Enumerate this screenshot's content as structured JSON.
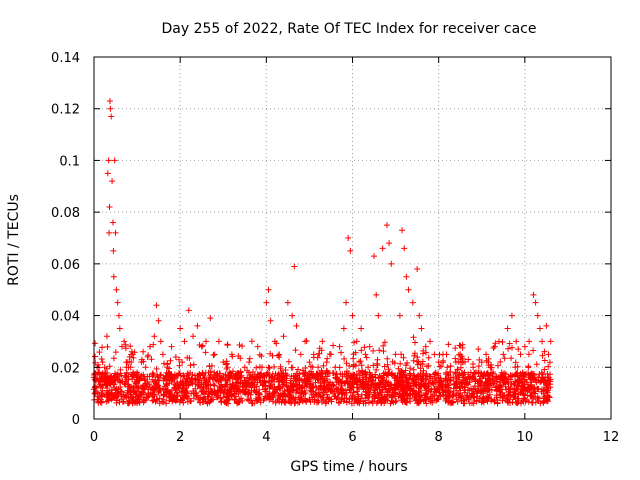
{
  "chart_data": {
    "type": "scatter",
    "title": "Day 255 of 2022, Rate Of TEC Index for receiver cace",
    "xlabel": "GPS time / hours",
    "ylabel": "ROTI / TECUs",
    "xlim": [
      0,
      12
    ],
    "ylim": [
      0,
      0.14
    ],
    "xticks": [
      "0",
      "2",
      "4",
      "6",
      "8",
      "10",
      "12"
    ],
    "yticks": [
      "0",
      "0.02",
      "0.04",
      "0.06",
      "0.08",
      "0.1",
      "0.12",
      "0.14"
    ],
    "grid": true,
    "marker": "+",
    "series_color": "#ff0000",
    "series": [
      {
        "name": "ROTI",
        "x": [
          0.05,
          0.1,
          0.15,
          0.2,
          0.25,
          0.3,
          0.32,
          0.34,
          0.35,
          0.36,
          0.37,
          0.38,
          0.4,
          0.42,
          0.44,
          0.45,
          0.46,
          0.48,
          0.5,
          0.52,
          0.55,
          0.58,
          0.6,
          0.65,
          0.7,
          0.75,
          0.8,
          0.9,
          1.0,
          1.1,
          1.2,
          1.3,
          1.4,
          1.45,
          1.5,
          1.55,
          1.6,
          1.7,
          1.8,
          1.9,
          2.0,
          2.1,
          2.2,
          2.3,
          2.4,
          2.5,
          2.6,
          2.7,
          2.8,
          2.9,
          3.0,
          3.1,
          3.2,
          3.4,
          3.5,
          3.6,
          3.8,
          3.9,
          4.0,
          4.05,
          4.1,
          4.2,
          4.3,
          4.4,
          4.5,
          4.6,
          4.65,
          4.7,
          4.8,
          4.9,
          5.0,
          5.1,
          5.2,
          5.3,
          5.4,
          5.5,
          5.6,
          5.7,
          5.8,
          5.85,
          5.9,
          5.95,
          6.0,
          6.1,
          6.2,
          6.3,
          6.4,
          6.5,
          6.55,
          6.6,
          6.7,
          6.8,
          6.85,
          6.9,
          7.0,
          7.1,
          7.15,
          7.2,
          7.25,
          7.3,
          7.4,
          7.5,
          7.55,
          7.6,
          7.7,
          7.8,
          7.9,
          8.0,
          8.1,
          8.2,
          8.4,
          8.5,
          8.6,
          8.8,
          9.0,
          9.1,
          9.2,
          9.3,
          9.4,
          9.5,
          9.6,
          9.7,
          9.8,
          9.9,
          10.0,
          10.1,
          10.2,
          10.25,
          10.3,
          10.35,
          10.4,
          10.5,
          10.55,
          10.6
        ],
        "y": [
          0.012,
          0.018,
          0.015,
          0.022,
          0.02,
          0.032,
          0.095,
          0.1,
          0.072,
          0.082,
          0.123,
          0.12,
          0.117,
          0.092,
          0.076,
          0.065,
          0.055,
          0.1,
          0.072,
          0.05,
          0.045,
          0.04,
          0.035,
          0.028,
          0.03,
          0.022,
          0.02,
          0.025,
          0.018,
          0.022,
          0.02,
          0.028,
          0.032,
          0.044,
          0.038,
          0.03,
          0.025,
          0.02,
          0.028,
          0.024,
          0.035,
          0.03,
          0.042,
          0.032,
          0.036,
          0.028,
          0.03,
          0.039,
          0.025,
          0.03,
          0.022,
          0.02,
          0.025,
          0.018,
          0.02,
          0.022,
          0.028,
          0.02,
          0.045,
          0.05,
          0.038,
          0.03,
          0.025,
          0.032,
          0.045,
          0.04,
          0.059,
          0.036,
          0.025,
          0.03,
          0.022,
          0.025,
          0.02,
          0.03,
          0.022,
          0.025,
          0.02,
          0.028,
          0.035,
          0.045,
          0.07,
          0.065,
          0.04,
          0.03,
          0.035,
          0.025,
          0.028,
          0.063,
          0.048,
          0.04,
          0.066,
          0.075,
          0.068,
          0.06,
          0.025,
          0.04,
          0.073,
          0.066,
          0.055,
          0.05,
          0.045,
          0.058,
          0.04,
          0.035,
          0.028,
          0.03,
          0.025,
          0.022,
          0.025,
          0.02,
          0.022,
          0.025,
          0.018,
          0.02,
          0.022,
          0.025,
          0.02,
          0.028,
          0.03,
          0.025,
          0.035,
          0.04,
          0.03,
          0.025,
          0.028,
          0.03,
          0.048,
          0.045,
          0.04,
          0.035,
          0.03,
          0.036,
          0.025,
          0.03
        ]
      }
    ]
  }
}
